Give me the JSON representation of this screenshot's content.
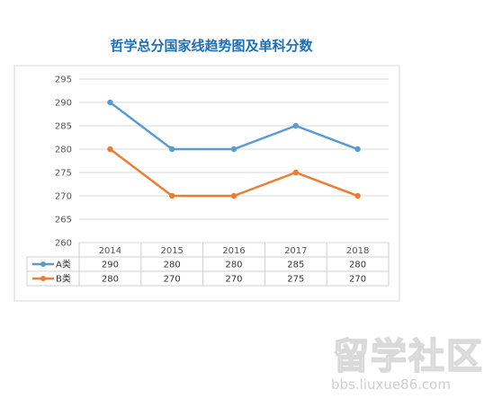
{
  "chart_data": {
    "type": "line",
    "title": "哲学总分国家线趋势图及单科分数",
    "categories": [
      "2014",
      "2015",
      "2016",
      "2017",
      "2018"
    ],
    "series": [
      {
        "name": "A类",
        "values": [
          290,
          280,
          280,
          285,
          280
        ],
        "color": "#5b9bd5"
      },
      {
        "name": "B类",
        "values": [
          280,
          270,
          270,
          275,
          270
        ],
        "color": "#ed7d31"
      }
    ],
    "yticks": [
      260,
      265,
      270,
      275,
      280,
      285,
      290,
      295
    ],
    "ylim": [
      260,
      295
    ],
    "grid": true,
    "legend": "data-table",
    "xlabel": "",
    "ylabel": ""
  },
  "watermark": {
    "main": "留学社区",
    "url": "bbs.liuxue86.com"
  }
}
